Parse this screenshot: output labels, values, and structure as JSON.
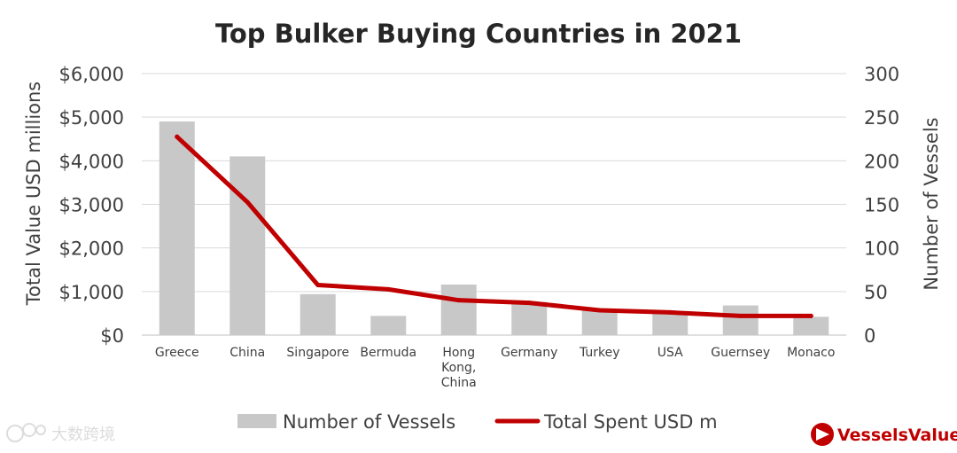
{
  "chart_data": {
    "type": "bar+line",
    "title": "Top Bulker Buying Countries in 2021",
    "categories": [
      "Greece",
      "China",
      "Singapore",
      "Bermuda",
      "Hong Kong, China",
      "Germany",
      "Turkey",
      "USA",
      "Guernsey",
      "Monaco"
    ],
    "series": [
      {
        "name": "Number of Vessels",
        "type": "bar",
        "axis": "right",
        "color": "#c8c8c8",
        "values": [
          245,
          205,
          47,
          22,
          58,
          38,
          29,
          25,
          34,
          21
        ]
      },
      {
        "name": "Total Spent USD m",
        "type": "line",
        "axis": "left",
        "color": "#c00000",
        "values": [
          4550,
          3050,
          1150,
          1050,
          800,
          740,
          570,
          520,
          440,
          440
        ]
      }
    ],
    "ylabel_left": "Total Value USD millions",
    "ylabel_right": "Number of Vessels",
    "ylim_left": [
      0,
      6000
    ],
    "ylim_right": [
      0,
      300
    ],
    "yticks_left": [
      "$0",
      "$1,000",
      "$2,000",
      "$3,000",
      "$4,000",
      "$5,000",
      "$6,000"
    ],
    "yticks_right": [
      "0",
      "50",
      "100",
      "150",
      "200",
      "250",
      "300"
    ],
    "grid": true,
    "legend_position": "bottom"
  },
  "watermark": {
    "text": "大数跨境"
  },
  "brand": {
    "name": "VesselsValue",
    "color": "#c00000"
  }
}
